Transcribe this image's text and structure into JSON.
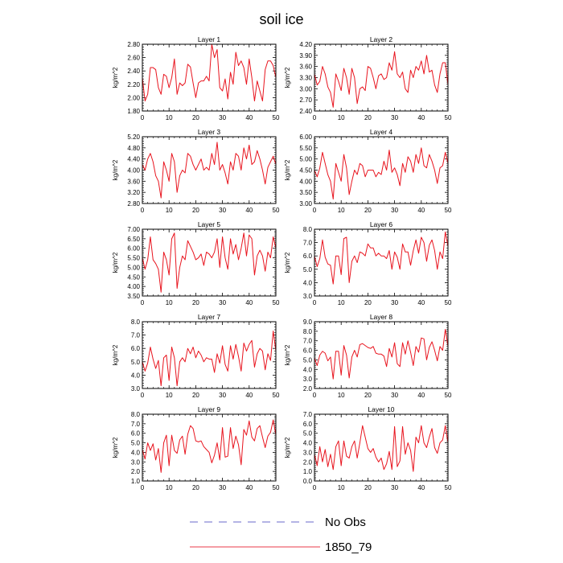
{
  "chart_data": {
    "type": "line",
    "title": "soil ice",
    "x_ticks": [
      0,
      10,
      20,
      30,
      40,
      50
    ],
    "xlim": [
      0,
      50
    ],
    "legend": {
      "placement": "bottom-center",
      "entries": [
        {
          "label": "No Obs",
          "color": "#6a6acb",
          "style": "dashed"
        },
        {
          "label": "1850_79",
          "color": "#e8394a",
          "style": "solid"
        }
      ]
    },
    "series_color": "#e8141e",
    "panels": [
      {
        "title": "Layer 1",
        "ylabel": "kg/m^2",
        "ylim": [
          1.8,
          2.8
        ],
        "y_ticks": [
          "1.80",
          "2.00",
          "2.20",
          "2.40",
          "2.60",
          "2.80"
        ],
        "values": [
          2.3,
          1.95,
          2.05,
          2.45,
          2.45,
          2.42,
          2.15,
          2.05,
          2.35,
          2.32,
          2.15,
          2.3,
          2.58,
          2.05,
          2.22,
          2.18,
          2.22,
          2.5,
          2.46,
          2.22,
          2.0,
          2.22,
          2.25,
          2.25,
          2.32,
          2.25,
          2.8,
          2.6,
          2.72,
          2.15,
          2.1,
          2.28,
          1.98,
          2.38,
          2.2,
          2.68,
          2.48,
          2.55,
          2.45,
          2.2,
          2.58,
          2.3,
          1.95,
          2.25,
          2.1,
          1.95,
          2.42,
          2.55,
          2.55,
          2.48,
          2.3
        ]
      },
      {
        "title": "Layer 2",
        "ylabel": "kg/m^2",
        "ylim": [
          2.4,
          4.2
        ],
        "y_ticks": [
          "2.40",
          "2.70",
          "3.00",
          "3.30",
          "3.60",
          "3.90",
          "4.20"
        ],
        "values": [
          3.4,
          3.1,
          3.2,
          3.6,
          3.4,
          3.05,
          2.9,
          2.5,
          3.4,
          3.2,
          2.95,
          3.55,
          3.3,
          2.85,
          3.55,
          3.3,
          2.6,
          3.0,
          3.05,
          2.95,
          3.6,
          3.55,
          3.3,
          3.0,
          3.35,
          3.4,
          3.25,
          3.3,
          3.7,
          3.5,
          4.0,
          3.4,
          3.3,
          3.45,
          3.0,
          2.9,
          3.5,
          3.3,
          3.6,
          3.5,
          3.75,
          3.4,
          3.9,
          3.45,
          3.5,
          3.1,
          2.9,
          3.4,
          3.7,
          3.7,
          3.1
        ]
      },
      {
        "title": "Layer 3",
        "ylabel": "kg/m^2",
        "ylim": [
          2.8,
          5.2
        ],
        "y_ticks": [
          "2.80",
          "3.20",
          "3.60",
          "4.00",
          "4.40",
          "4.80",
          "5.20"
        ],
        "values": [
          4.2,
          4.0,
          4.4,
          4.6,
          4.3,
          3.8,
          3.6,
          3.0,
          4.3,
          4.0,
          3.6,
          4.6,
          4.3,
          3.2,
          3.8,
          4.0,
          3.9,
          4.6,
          4.5,
          4.2,
          4.0,
          4.2,
          4.4,
          4.0,
          4.1,
          4.0,
          4.6,
          4.2,
          5.0,
          4.0,
          4.2,
          3.9,
          3.5,
          4.3,
          4.0,
          4.6,
          4.5,
          4.0,
          4.8,
          4.4,
          4.9,
          4.2,
          4.3,
          4.7,
          4.4,
          4.0,
          3.5,
          4.1,
          4.3,
          4.5,
          4.2
        ]
      },
      {
        "title": "Layer 4",
        "ylabel": "kg/m^2",
        "ylim": [
          3.0,
          6.0
        ],
        "y_ticks": [
          "3.00",
          "3.50",
          "4.00",
          "4.50",
          "5.00",
          "5.50",
          "6.00"
        ],
        "values": [
          4.5,
          4.2,
          4.6,
          5.3,
          4.8,
          4.3,
          4.0,
          3.2,
          4.8,
          4.4,
          4.0,
          5.2,
          4.6,
          3.4,
          4.0,
          4.5,
          4.3,
          4.8,
          4.7,
          4.2,
          4.5,
          4.5,
          4.5,
          4.2,
          4.4,
          4.3,
          4.9,
          4.5,
          5.4,
          4.4,
          4.6,
          4.3,
          3.8,
          4.8,
          4.4,
          5.1,
          4.9,
          4.4,
          5.2,
          4.8,
          5.5,
          4.7,
          4.6,
          5.2,
          4.9,
          4.5,
          3.9,
          4.6,
          4.7,
          5.3,
          4.8
        ]
      },
      {
        "title": "Layer 5",
        "ylabel": "kg/m^2",
        "ylim": [
          3.5,
          7.0
        ],
        "y_ticks": [
          "3.50",
          "4.00",
          "4.50",
          "5.00",
          "5.50",
          "6.00",
          "6.50",
          "7.00"
        ],
        "values": [
          5.5,
          4.9,
          5.4,
          6.6,
          5.4,
          5.2,
          4.9,
          3.7,
          5.8,
          5.4,
          4.6,
          6.5,
          6.8,
          3.9,
          5.0,
          5.6,
          5.4,
          6.4,
          6.1,
          5.8,
          5.4,
          5.5,
          5.7,
          5.1,
          5.8,
          5.7,
          5.5,
          5.8,
          6.5,
          5.0,
          6.6,
          5.5,
          4.9,
          6.5,
          5.7,
          6.2,
          5.4,
          6.0,
          6.8,
          5.6,
          6.7,
          6.5,
          4.6,
          5.6,
          5.9,
          5.6,
          4.8,
          5.8,
          5.5,
          6.6,
          6.0
        ]
      },
      {
        "title": "Layer 6",
        "ylabel": "kg/m^2",
        "ylim": [
          3.0,
          8.0
        ],
        "y_ticks": [
          "3.0",
          "4.0",
          "5.0",
          "6.0",
          "7.0",
          "8.0"
        ],
        "values": [
          6.0,
          5.2,
          5.8,
          7.2,
          5.9,
          5.4,
          5.3,
          3.9,
          6.0,
          6.0,
          4.6,
          7.3,
          7.4,
          4.0,
          5.6,
          6.0,
          5.5,
          6.3,
          6.2,
          6.0,
          6.9,
          6.6,
          6.6,
          6.0,
          6.2,
          6.0,
          6.0,
          5.8,
          6.4,
          5.0,
          6.3,
          5.9,
          5.0,
          6.9,
          6.3,
          6.3,
          5.3,
          6.4,
          7.2,
          6.2,
          7.4,
          7.0,
          5.6,
          6.8,
          7.2,
          6.4,
          5.0,
          6.3,
          5.8,
          7.8,
          6.7
        ]
      },
      {
        "title": "Layer 7",
        "ylabel": "kg/m^2",
        "ylim": [
          3.0,
          8.0
        ],
        "y_ticks": [
          "3.0",
          "4.0",
          "5.0",
          "6.0",
          "7.0",
          "8.0"
        ],
        "values": [
          5.0,
          4.3,
          4.9,
          6.1,
          5.2,
          4.5,
          5.1,
          3.2,
          5.3,
          5.5,
          3.6,
          6.1,
          5.3,
          3.2,
          5.0,
          5.3,
          5.0,
          6.0,
          5.6,
          6.1,
          5.3,
          5.8,
          5.5,
          5.0,
          5.3,
          5.2,
          5.2,
          4.2,
          5.6,
          4.9,
          6.2,
          4.8,
          4.3,
          6.2,
          5.2,
          6.3,
          5.4,
          4.3,
          6.4,
          5.8,
          6.3,
          6.6,
          4.6,
          5.6,
          6.0,
          5.8,
          4.4,
          5.6,
          5.1,
          7.3,
          5.8
        ]
      },
      {
        "title": "Layer 8",
        "ylabel": "kg/m^2",
        "ylim": [
          2.0,
          9.0
        ],
        "y_ticks": [
          "2.0",
          "3.0",
          "4.0",
          "5.0",
          "6.0",
          "7.0",
          "8.0",
          "9.0"
        ],
        "values": [
          5.2,
          4.4,
          5.5,
          5.9,
          5.7,
          4.9,
          5.3,
          3.0,
          5.9,
          5.9,
          3.4,
          6.5,
          5.5,
          3.1,
          5.3,
          6.0,
          5.3,
          6.6,
          6.7,
          6.5,
          6.3,
          6.2,
          6.4,
          5.7,
          5.6,
          5.6,
          5.4,
          4.3,
          6.2,
          5.3,
          6.8,
          4.6,
          4.3,
          6.8,
          5.6,
          7.0,
          5.8,
          4.4,
          6.4,
          5.8,
          7.3,
          7.2,
          5.0,
          6.3,
          6.9,
          6.0,
          4.9,
          6.4,
          6.0,
          8.2,
          6.4
        ]
      },
      {
        "title": "Layer 9",
        "ylabel": "kg/m^2",
        "ylim": [
          1.0,
          8.0
        ],
        "y_ticks": [
          "1.0",
          "2.0",
          "3.0",
          "4.0",
          "5.0",
          "6.0",
          "7.0",
          "8.0"
        ],
        "values": [
          4.3,
          3.3,
          5.0,
          4.2,
          4.9,
          3.2,
          4.4,
          1.9,
          5.0,
          5.8,
          2.6,
          5.8,
          4.2,
          3.9,
          5.3,
          5.7,
          3.8,
          5.9,
          6.8,
          6.5,
          5.2,
          5.1,
          5.2,
          4.6,
          4.3,
          4.0,
          2.9,
          3.7,
          5.0,
          3.2,
          6.6,
          3.5,
          3.6,
          6.6,
          4.4,
          5.7,
          4.8,
          2.7,
          6.4,
          5.8,
          7.3,
          5.6,
          5.2,
          6.5,
          6.8,
          5.6,
          4.5,
          5.7,
          6.1,
          7.4,
          5.8
        ]
      },
      {
        "title": "Layer 10",
        "ylabel": "kg/m^2",
        "ylim": [
          0.0,
          7.0
        ],
        "y_ticks": [
          "0.0",
          "1.0",
          "2.0",
          "3.0",
          "4.0",
          "5.0",
          "6.0",
          "7.0"
        ],
        "values": [
          2.8,
          1.6,
          3.6,
          2.0,
          3.3,
          1.5,
          2.8,
          1.2,
          3.6,
          4.2,
          1.6,
          4.2,
          2.6,
          2.4,
          3.6,
          4.2,
          2.4,
          4.0,
          5.8,
          4.6,
          3.4,
          3.0,
          3.4,
          2.5,
          2.0,
          2.4,
          1.2,
          1.8,
          3.1,
          1.2,
          5.7,
          1.5,
          2.1,
          5.7,
          2.8,
          4.0,
          3.2,
          1.0,
          4.6,
          4.0,
          5.8,
          4.0,
          3.5,
          4.6,
          5.5,
          3.5,
          2.9,
          4.0,
          4.3,
          5.8,
          4.0
        ]
      }
    ]
  }
}
